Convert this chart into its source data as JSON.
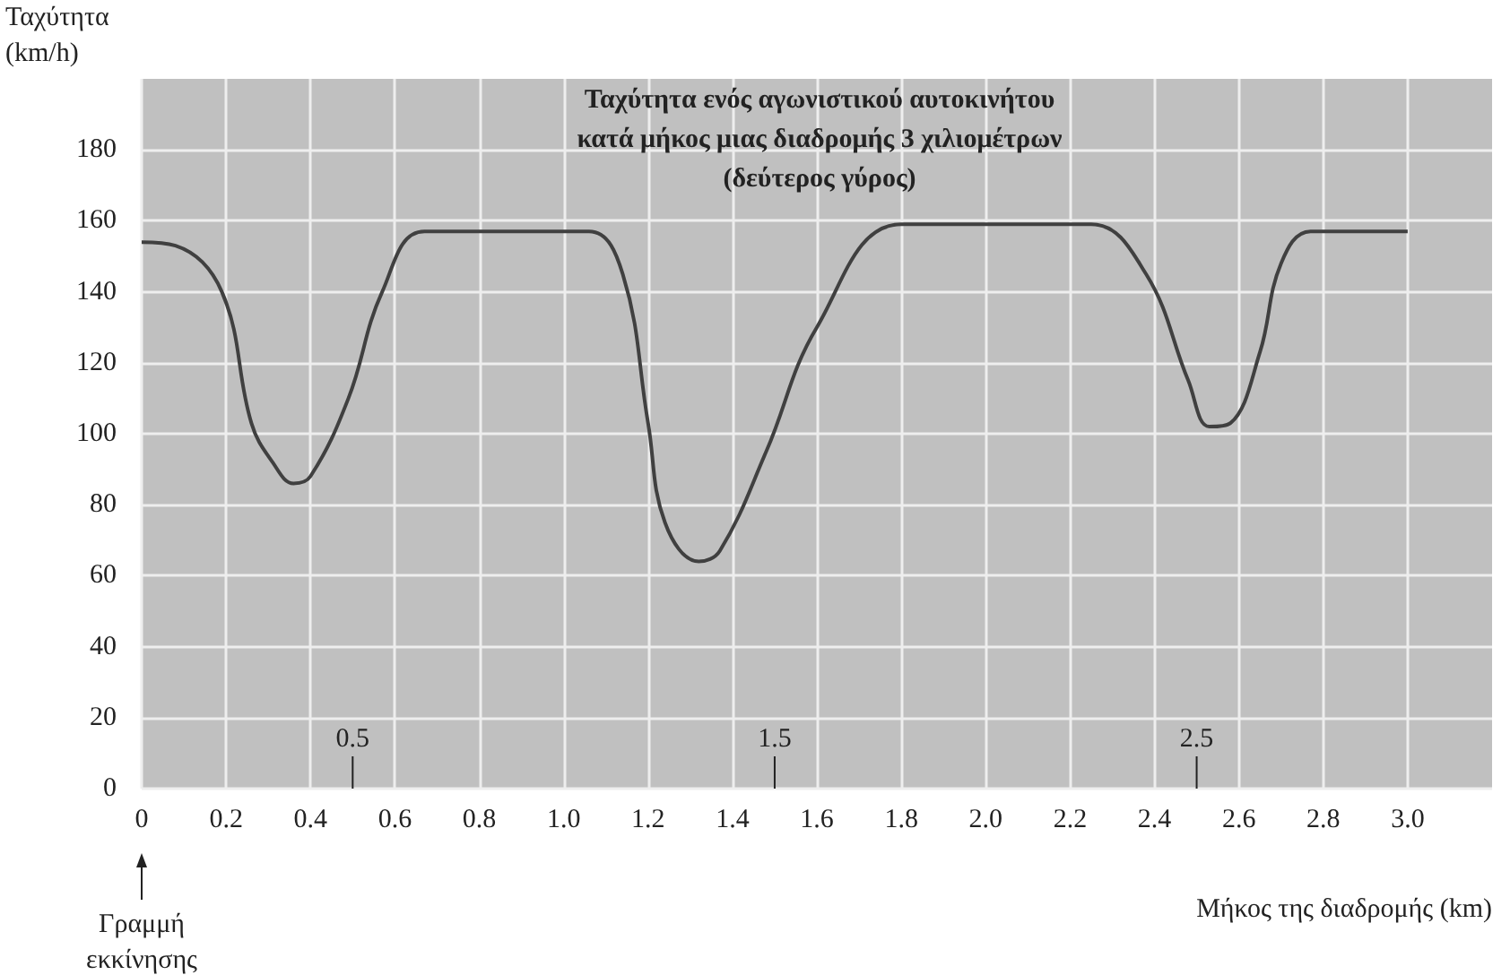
{
  "chart_data": {
    "type": "line",
    "title": "Ταχύτητα ενός αγωνιστικού αυτοκινήτου\nκατά μήκος μιας διαδρομής 3 χιλιομέτρων\n(δεύτερος γύρος)",
    "xlabel": "Μήκος της διαδρομής (km)",
    "ylabel": "Ταχύτητα\n(km/h)",
    "x": [
      0,
      0.08,
      0.19,
      0.26,
      0.31,
      0.36,
      0.4,
      0.49,
      0.57,
      0.67,
      1.06,
      1.14,
      1.2,
      1.24,
      1.32,
      1.37,
      1.48,
      1.6,
      1.8,
      2.25,
      2.38,
      2.48,
      2.53,
      2.58,
      2.65,
      2.7,
      2.77,
      3.0
    ],
    "series": [
      {
        "color": "#404040",
        "values": [
          154,
          153,
          140,
          103,
          92,
          86,
          88,
          110,
          140,
          157,
          157,
          145,
          103,
          75,
          64,
          67,
          95,
          130,
          159,
          159,
          145,
          115,
          102,
          103,
          123,
          148,
          157,
          157
        ]
      }
    ],
    "xlim": [
      0,
      3.2
    ],
    "xticks": [
      0,
      0.2,
      0.4,
      0.6,
      0.8,
      {
        "value": 1,
        "label": "1.0"
      },
      1.2,
      1.4,
      1.6,
      1.8,
      {
        "value": 2,
        "label": "2.0"
      },
      2.2,
      2.4,
      2.6,
      2.8,
      {
        "value": 3,
        "label": "3.0"
      }
    ],
    "ylim": [
      0,
      200
    ],
    "yticks": [
      0,
      20,
      40,
      60,
      80,
      100,
      120,
      140,
      160,
      180
    ],
    "ref_lines": [
      {
        "axis": "x",
        "value": 0.5,
        "label": "0.5",
        "color": "#222222"
      },
      {
        "axis": "x",
        "value": 1.5,
        "label": "1.5",
        "color": "#222222"
      },
      {
        "axis": "x",
        "value": 2.5,
        "label": "2.5",
        "color": "#222222"
      }
    ],
    "annotations": [
      "Γραμμή\nεκκίνησης"
    ],
    "grid": true,
    "marker": "none",
    "line_style": "solid"
  }
}
